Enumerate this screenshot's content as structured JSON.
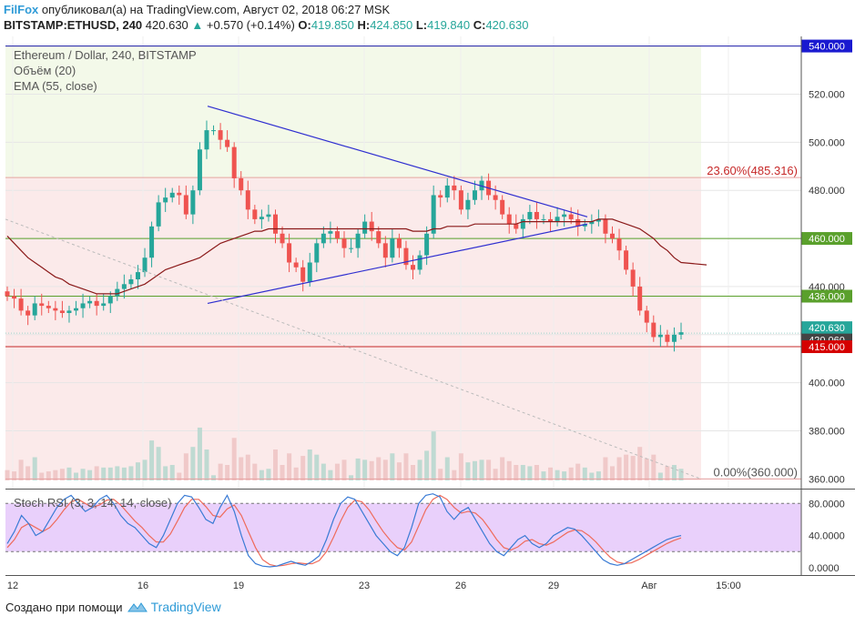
{
  "header": {
    "author": "FilFox",
    "published_text": "опубликовал(а) на TradingView.com, Август 02, 2018 06:27 MSK",
    "symbol": "BITSTAMP:ETHUSD, 240",
    "last": "420.630",
    "change": "+0.570 (+0.14%)",
    "o_label": "O:",
    "o_value": "419.850",
    "h_label": "H:",
    "h_value": "424.850",
    "l_label": "L:",
    "l_value": "419.840",
    "c_label": "C:",
    "c_value": "420.630"
  },
  "legend": {
    "title": "Ethereum / Dollar, 240, BITSTAMP",
    "volume": "Объём (20)",
    "ema": "EMA (55, close)",
    "stoch": "Stoch RSI (3, 3, 14, 14, close)"
  },
  "footer": {
    "created_with": "Создано при помощи",
    "brand": "TradingView"
  },
  "chart_data": [
    {
      "type": "candlestick",
      "title": "Ethereum / Dollar, 240, BITSTAMP",
      "ylim": [
        356,
        544
      ],
      "y_ticks": [
        "360.000",
        "380.000",
        "400.000",
        "420.000",
        "440.000",
        "460.000",
        "480.000",
        "500.000",
        "520.000"
      ],
      "x_ticks": [
        "12",
        "16",
        "19",
        "23",
        "26",
        "29",
        "Авг",
        "15:00"
      ],
      "colors": {
        "up": "#26a69a",
        "down": "#ef5350",
        "ema": "#8b1a1a",
        "trend": "#2f2fd0",
        "fib": "#c62828"
      },
      "levels": [
        {
          "value": 540.0,
          "label": "540.000",
          "color": "#1a1aa8"
        },
        {
          "value": 460.0,
          "label": "460.000",
          "color": "#5aa02c"
        },
        {
          "value": 436.0,
          "label": "436.000",
          "color": "#5aa02c"
        },
        {
          "value": 420.63,
          "label": "420.630",
          "color": "#26a69a"
        },
        {
          "value": 420.06,
          "label": "420.060",
          "color": "#444444"
        },
        {
          "value": 415.0,
          "label": "415.000",
          "color": "#c62828"
        }
      ],
      "fib_annotations": [
        {
          "value": 485.316,
          "label": "23.60%(485.316)"
        },
        {
          "value": 360.0,
          "label": "0.00%(360.000)"
        }
      ],
      "trend_lines": [
        {
          "from": [
            "17",
            515
          ],
          "to": [
            "30",
            469
          ]
        },
        {
          "from": [
            "17",
            433
          ],
          "to": [
            "30",
            466
          ]
        },
        {
          "from": [
            "11",
            468
          ],
          "to": [
            "Авг-02",
            360
          ]
        }
      ],
      "close": [
        436,
        435,
        430,
        428,
        433,
        432,
        431,
        430,
        429,
        430,
        431,
        433,
        434,
        432,
        433,
        436,
        439,
        441,
        443,
        446,
        452,
        465,
        475,
        477,
        479,
        478,
        470,
        480,
        497,
        505,
        505,
        501,
        498,
        485,
        480,
        472,
        468,
        469,
        470,
        462,
        458,
        450,
        448,
        442,
        450,
        458,
        462,
        463,
        460,
        456,
        456,
        462,
        467,
        463,
        458,
        452,
        460,
        456,
        449,
        447,
        453,
        462,
        478,
        477,
        482,
        480,
        472,
        476,
        480,
        484,
        478,
        476,
        470,
        466,
        464,
        468,
        471,
        468,
        468,
        467,
        469,
        470,
        468,
        465,
        466,
        467,
        468,
        462,
        460,
        455,
        447,
        440,
        430,
        425,
        419,
        420,
        417,
        420,
        421
      ],
      "ema": [
        461,
        458,
        455,
        452,
        450,
        448,
        446,
        444,
        443,
        441,
        440,
        439,
        438,
        437,
        437,
        437,
        437,
        438,
        439,
        440,
        441,
        443,
        445,
        447,
        448,
        449,
        450,
        451,
        452,
        454,
        456,
        458,
        459,
        460,
        461,
        462,
        463,
        463,
        464,
        464,
        464,
        464,
        464,
        464,
        464,
        464,
        464,
        464,
        464,
        464,
        464,
        464,
        464,
        464,
        464,
        464,
        464,
        464,
        464,
        463,
        463,
        463,
        464,
        464,
        465,
        465,
        465,
        465,
        466,
        466,
        466,
        466,
        466,
        466,
        466,
        467,
        467,
        467,
        467,
        467,
        467,
        467,
        467,
        467,
        467,
        467,
        468,
        468,
        468,
        467,
        466,
        465,
        464,
        462,
        460,
        457,
        455,
        452,
        450
      ],
      "volume_ylim": [
        0,
        100
      ],
      "stoch_rsi": {
        "ylim": [
          -8,
          95
        ],
        "ticks": [
          "0.0000",
          "40.0000",
          "80.0000"
        ],
        "bands": [
          20,
          80
        ],
        "k": [
          30,
          45,
          65,
          55,
          40,
          45,
          60,
          75,
          85,
          90,
          80,
          70,
          75,
          85,
          90,
          80,
          65,
          55,
          50,
          40,
          30,
          25,
          40,
          60,
          80,
          90,
          88,
          75,
          60,
          55,
          75,
          90,
          70,
          40,
          15,
          5,
          2,
          1,
          2,
          5,
          8,
          5,
          3,
          8,
          15,
          35,
          60,
          80,
          88,
          85,
          70,
          55,
          40,
          30,
          20,
          15,
          25,
          50,
          80,
          90,
          92,
          88,
          70,
          60,
          70,
          75,
          60,
          45,
          30,
          20,
          15,
          25,
          35,
          40,
          30,
          25,
          30,
          40,
          45,
          50,
          48,
          40,
          30,
          20,
          10,
          5,
          3,
          5,
          10,
          15,
          20,
          25,
          30,
          35,
          38,
          40
        ],
        "d": [
          25,
          35,
          50,
          55,
          50,
          45,
          50,
          60,
          72,
          82,
          85,
          80,
          75,
          78,
          84,
          85,
          78,
          68,
          58,
          50,
          40,
          32,
          32,
          42,
          58,
          75,
          85,
          85,
          76,
          65,
          63,
          73,
          78,
          65,
          45,
          25,
          10,
          4,
          2,
          3,
          5,
          6,
          5,
          5,
          9,
          20,
          38,
          58,
          75,
          84,
          82,
          72,
          58,
          45,
          34,
          25,
          22,
          32,
          52,
          72,
          85,
          90,
          85,
          75,
          68,
          70,
          68,
          60,
          48,
          35,
          25,
          22,
          26,
          33,
          35,
          30,
          28,
          32,
          38,
          44,
          47,
          46,
          40,
          32,
          22,
          13,
          7,
          5,
          6,
          10,
          15,
          20,
          25,
          30,
          34,
          37
        ]
      }
    }
  ]
}
